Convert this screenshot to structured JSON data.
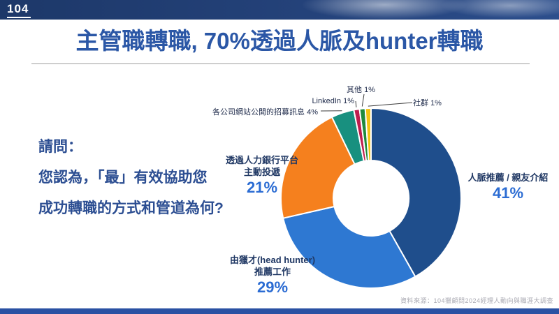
{
  "header": {
    "logo": "104"
  },
  "title": "主管職轉職, 70%透過人脈及hunter轉職",
  "question": {
    "line1": "請問：",
    "line2": "您認為，「最」有效協助您",
    "line3": "成功轉職的方式和管道為何?"
  },
  "chart_data": {
    "type": "pie",
    "subtype": "donut",
    "title": "最有效協助成功轉職的方式和管道",
    "start_angle_deg": 0,
    "direction": "clockwise",
    "legend_position": "callouts",
    "slices": [
      {
        "label": "人脈推薦 / 親友介紹",
        "label_lines": [
          "人脈推薦 / 親友介紹"
        ],
        "value": 41,
        "pct": "41%",
        "color": "#1F4E8C"
      },
      {
        "label": "由獵才(head hunter)推薦工作",
        "label_lines": [
          "由獵才(head hunter)",
          "推薦工作"
        ],
        "value": 29,
        "pct": "29%",
        "color": "#2E78D2"
      },
      {
        "label": "透過人力銀行平台主動投遞",
        "label_lines": [
          "透過人力銀行平台",
          "主動投遞"
        ],
        "value": 21,
        "pct": "21%",
        "color": "#F5801E"
      },
      {
        "label": "各公司網站公開的招募訊息",
        "value": 4,
        "pct": "4%",
        "color": "#18907F"
      },
      {
        "label": "LinkedIn",
        "value": 1,
        "pct": "1%",
        "color": "#BE1E4E"
      },
      {
        "label": "其他",
        "value": 1,
        "pct": "1%",
        "color": "#1F8A3D"
      },
      {
        "label": "社群",
        "value": 1,
        "pct": "1%",
        "color": "#F3C212"
      }
    ]
  },
  "footer": {
    "source": "資料來源：104獵顧問2024經理人動向與職涯大調查",
    "accent_bar_color": "#2A51A3"
  }
}
